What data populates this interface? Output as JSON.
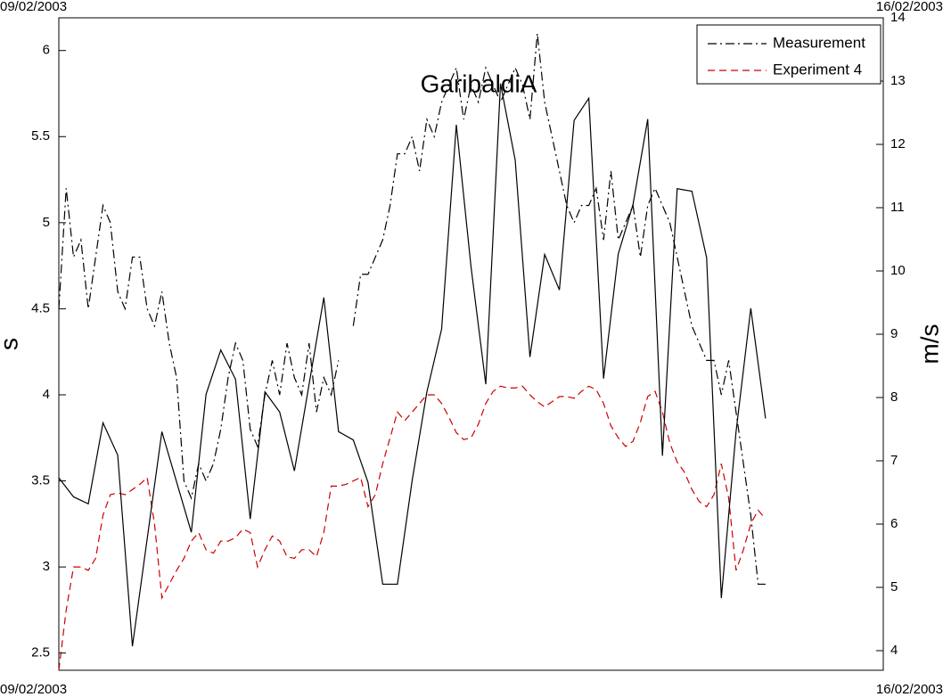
{
  "chart_data": {
    "type": "line",
    "title": "GaribaldiA",
    "ylabel": "s",
    "y2label": "m/s",
    "xlim": [
      0,
      7
    ],
    "xticks": [
      {
        "value": 0,
        "label": "09/02/2003"
      },
      {
        "value": 7,
        "label": "16/02/2003"
      }
    ],
    "ylim": [
      2.4,
      6.19
    ],
    "yticks": [
      2.5,
      3,
      3.5,
      4,
      4.5,
      5,
      5.5,
      6
    ],
    "y2lim": [
      3.69,
      14
    ],
    "y2ticks": [
      4,
      5,
      6,
      7,
      8,
      9,
      10,
      11,
      12,
      13,
      14
    ],
    "legend": "upper right",
    "x": [
      0,
      0.0625,
      0.125,
      0.1875,
      0.25,
      0.3125,
      0.375,
      0.4375,
      0.5,
      0.5625,
      0.625,
      0.6875,
      0.75,
      0.8125,
      0.875,
      0.9375,
      1,
      1.0625,
      1.125,
      1.1875,
      1.25,
      1.3125,
      1.375,
      1.4375,
      1.5,
      1.5625,
      1.625,
      1.6875,
      1.75,
      1.8125,
      1.875,
      1.9375,
      2,
      2.0625,
      2.125,
      2.1875,
      2.25,
      2.3125,
      2.375,
      2.4375,
      2.5,
      2.5625,
      2.625,
      2.6875,
      2.75,
      2.8125,
      2.875,
      2.9375,
      3,
      3.0625,
      3.125,
      3.1875,
      3.25,
      3.3125,
      3.375,
      3.4375,
      3.5,
      3.5625,
      3.625,
      3.6875,
      3.75,
      3.8125,
      3.875,
      3.9375,
      4,
      4.0625,
      4.125,
      4.1875,
      4.25,
      4.3125,
      4.375,
      4.4375,
      4.5,
      4.5625,
      4.625,
      4.6875,
      4.75,
      4.8125,
      4.875,
      4.9375,
      5,
      5.0625,
      5.125,
      5.1875,
      5.25,
      5.3125,
      5.375,
      5.4375,
      5.5,
      5.5625,
      5.625,
      5.6875,
      5.75,
      5.8125,
      5.875,
      5.9375,
      6
    ],
    "series": [
      {
        "name": "Measurement",
        "color": "#000000",
        "style": "dashdot",
        "values": [
          4.5,
          5.2,
          4.8,
          4.9,
          4.5,
          4.8,
          5.1,
          5.0,
          4.6,
          4.5,
          4.8,
          4.8,
          4.5,
          4.4,
          4.6,
          4.3,
          4.1,
          3.5,
          3.4,
          3.6,
          3.5,
          3.6,
          3.8,
          4.1,
          4.3,
          4.2,
          3.8,
          3.7,
          4.0,
          4.2,
          4.0,
          4.3,
          4.1,
          4.0,
          4.3,
          3.9,
          4.1,
          4.0,
          4.2,
          null,
          4.4,
          4.7,
          4.7,
          4.8,
          4.9,
          5.1,
          5.4,
          5.4,
          5.5,
          5.3,
          5.6,
          5.5,
          5.7,
          5.8,
          5.9,
          5.6,
          5.8,
          5.7,
          5.9,
          5.8,
          5.7,
          5.8,
          5.9,
          5.8,
          5.6,
          6.1,
          5.7,
          5.5,
          5.3,
          5.1,
          5.0,
          5.1,
          5.1,
          5.2,
          4.9,
          5.3,
          4.9,
          5.0,
          5.1,
          4.8,
          5.1,
          5.2,
          5.1,
          5.0,
          4.8,
          4.6,
          4.4,
          4.3,
          4.2,
          4.2,
          4.0,
          4.2,
          3.9,
          3.6,
          3.3,
          2.9,
          2.9
        ]
      },
      {
        "name": "Experiment 4",
        "color": "#cc0000",
        "style": "dashed",
        "values": [
          2.4,
          2.75,
          3.0,
          3.0,
          2.98,
          3.05,
          3.3,
          3.42,
          3.43,
          3.42,
          3.45,
          3.48,
          3.52,
          3.25,
          2.82,
          2.9,
          2.98,
          3.05,
          3.15,
          3.2,
          3.1,
          3.08,
          3.15,
          3.15,
          3.17,
          3.22,
          3.2,
          3.0,
          3.1,
          3.18,
          3.15,
          3.06,
          3.05,
          3.1,
          3.1,
          3.06,
          3.2,
          3.47,
          3.47,
          3.48,
          3.5,
          3.52,
          3.35,
          3.42,
          3.6,
          3.75,
          3.9,
          3.85,
          3.9,
          3.95,
          4.0,
          4.0,
          3.95,
          3.87,
          3.78,
          3.74,
          3.75,
          3.83,
          3.95,
          4.02,
          4.05,
          4.04,
          4.04,
          4.05,
          4.0,
          3.96,
          3.93,
          3.96,
          3.99,
          3.99,
          3.98,
          4.02,
          4.05,
          4.03,
          3.95,
          3.82,
          3.75,
          3.7,
          3.73,
          3.84,
          3.99,
          4.02,
          3.9,
          3.72,
          3.61,
          3.55,
          3.45,
          3.38,
          3.35,
          3.42,
          3.6,
          3.4,
          2.98,
          3.1,
          3.25,
          3.33,
          3.28
        ]
      },
      {
        "color": "#000000",
        "style": "solid",
        "axis": "y2",
        "x": [
          0,
          0.125,
          0.25,
          0.375,
          0.5,
          0.625,
          0.875,
          1.125,
          1.25,
          1.375,
          1.5,
          1.625,
          1.75,
          1.875,
          2.0,
          2.25,
          2.375,
          2.5,
          2.625,
          2.75,
          2.875,
          3.0,
          3.125,
          3.25,
          3.375,
          3.5,
          3.625,
          3.75,
          3.875,
          4.0,
          4.125,
          4.25,
          4.375,
          4.5,
          4.625,
          4.75,
          4.875,
          5.0,
          5.125,
          5.25,
          5.375,
          5.5,
          5.625,
          5.75,
          5.875,
          6.0
        ],
        "values": [
          6.73,
          6.43,
          6.32,
          7.6,
          7.09,
          4.07,
          7.46,
          5.87,
          8.05,
          8.75,
          8.29,
          6.08,
          8.09,
          7.77,
          6.84,
          9.58,
          7.46,
          7.33,
          6.66,
          5.05,
          5.05,
          6.69,
          8.09,
          9.08,
          12.31,
          10.06,
          8.21,
          12.96,
          11.75,
          8.64,
          10.26,
          9.7,
          12.38,
          12.73,
          8.3,
          10.27,
          11.05,
          12.4,
          7.08,
          11.3,
          11.26,
          10.21,
          4.83,
          7.46,
          9.41,
          7.67
        ]
      }
    ]
  }
}
